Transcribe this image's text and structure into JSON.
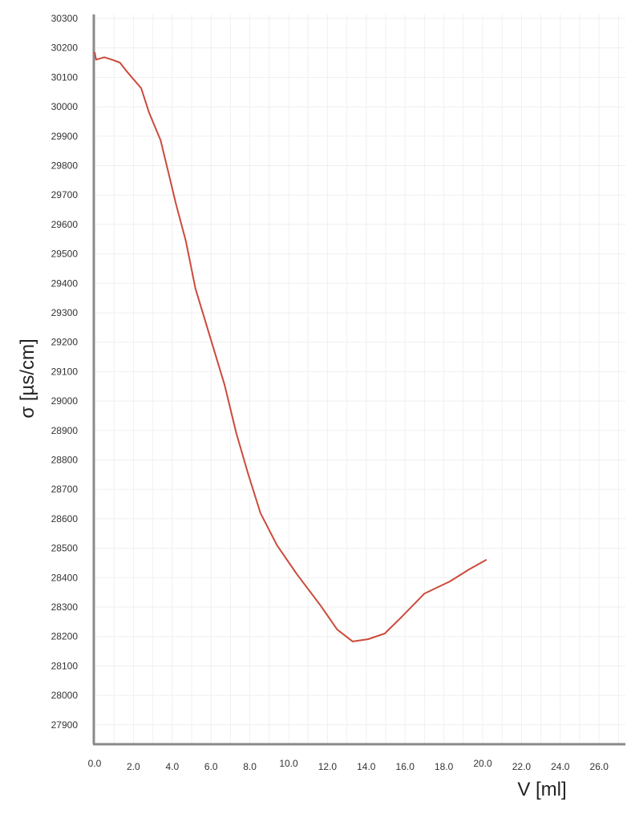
{
  "chart_data": {
    "type": "line",
    "title": "",
    "xlabel": "V [ml]",
    "ylabel": "σ [µs/cm]",
    "xlim": [
      0,
      27.4
    ],
    "ylim": [
      27830,
      30300
    ],
    "xticks": [
      "0.0",
      "2.0",
      "4.0",
      "6.0",
      "8.0",
      "10.0",
      "12.0",
      "14.0",
      "16.0",
      "18.0",
      "20.0",
      "22.0",
      "24.0",
      "26.0"
    ],
    "yticks": [
      "30300",
      "30200",
      "30100",
      "30000",
      "29900",
      "29800",
      "29700",
      "29600",
      "29500",
      "29400",
      "29300",
      "29200",
      "29100",
      "29000",
      "28900",
      "28800",
      "28700",
      "28600",
      "28500",
      "28400",
      "28300",
      "28200",
      "28100",
      "28000",
      "27900"
    ],
    "grid": true,
    "line_color": "#cc4a3c",
    "series": [
      {
        "x": [
          0,
          0.08,
          0.5,
          0.9,
          1.3,
          1.7,
          2.4,
          2.8,
          3.4,
          3.8,
          4.2,
          4.7,
          5.2,
          5.95,
          6.7,
          7.3,
          7.9,
          8.55,
          9.4,
          10.4,
          11.65,
          12.5,
          13.3,
          14.1,
          14.95,
          15.8,
          17.0,
          18.3,
          19.3,
          20.2
        ],
        "y": [
          30186,
          30160,
          30168,
          30160,
          30150,
          30117,
          30063,
          29981,
          29886,
          29777,
          29668,
          29545,
          29382,
          29218,
          29055,
          28891,
          28755,
          28619,
          28510,
          28414,
          28305,
          28224,
          28183,
          28191,
          28210,
          28265,
          28346,
          28387,
          28428,
          28461
        ]
      }
    ]
  }
}
